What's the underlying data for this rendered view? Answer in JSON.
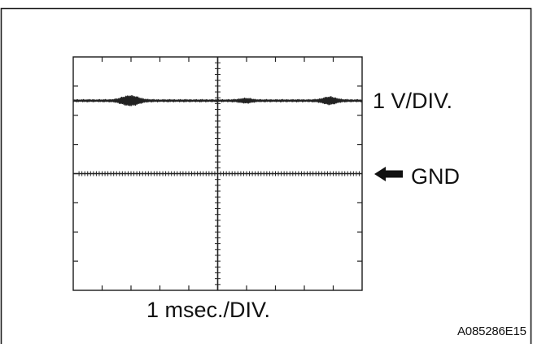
{
  "waveform_figure": {
    "voltage_scale": "1 V/DIV.",
    "ground_label": "GND",
    "time_scale": "1 msec./DIV.",
    "figure_id": "A085286E15",
    "signal_level_div_above_gnd": 2.5,
    "grid_divisions": {
      "x": 10,
      "y": 8
    },
    "trace_color": "#222222",
    "frame_color": "#1a1a1a"
  }
}
